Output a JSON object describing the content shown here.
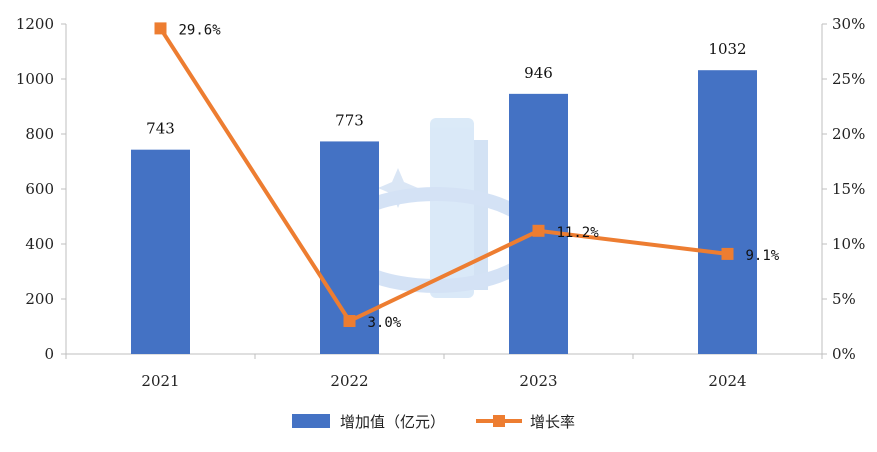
{
  "chart_data": {
    "type": "bar",
    "categories": [
      "2021",
      "2022",
      "2023",
      "2024"
    ],
    "series": [
      {
        "name": "增加值（亿元）",
        "type": "bar",
        "axis": "left",
        "values": [
          743,
          773,
          946,
          1032
        ],
        "labels": [
          "743",
          "773",
          "946",
          "1032"
        ],
        "color": "#4472C4"
      },
      {
        "name": "增长率",
        "type": "line",
        "axis": "right",
        "values": [
          29.6,
          3.0,
          11.2,
          9.1
        ],
        "labels": [
          "29.6%",
          "3.0%",
          "11.2%",
          "9.1%"
        ],
        "color": "#ED7D31"
      }
    ],
    "y_left": {
      "range": [
        0,
        1200
      ],
      "ticks": [
        "0",
        "200",
        "400",
        "600",
        "800",
        "1000",
        "1200"
      ]
    },
    "y_right": {
      "range": [
        0,
        30
      ],
      "ticks": [
        "0%",
        "5%",
        "10%",
        "15%",
        "20%",
        "25%",
        "30%"
      ]
    },
    "grid": false,
    "legend_position": "bottom"
  }
}
